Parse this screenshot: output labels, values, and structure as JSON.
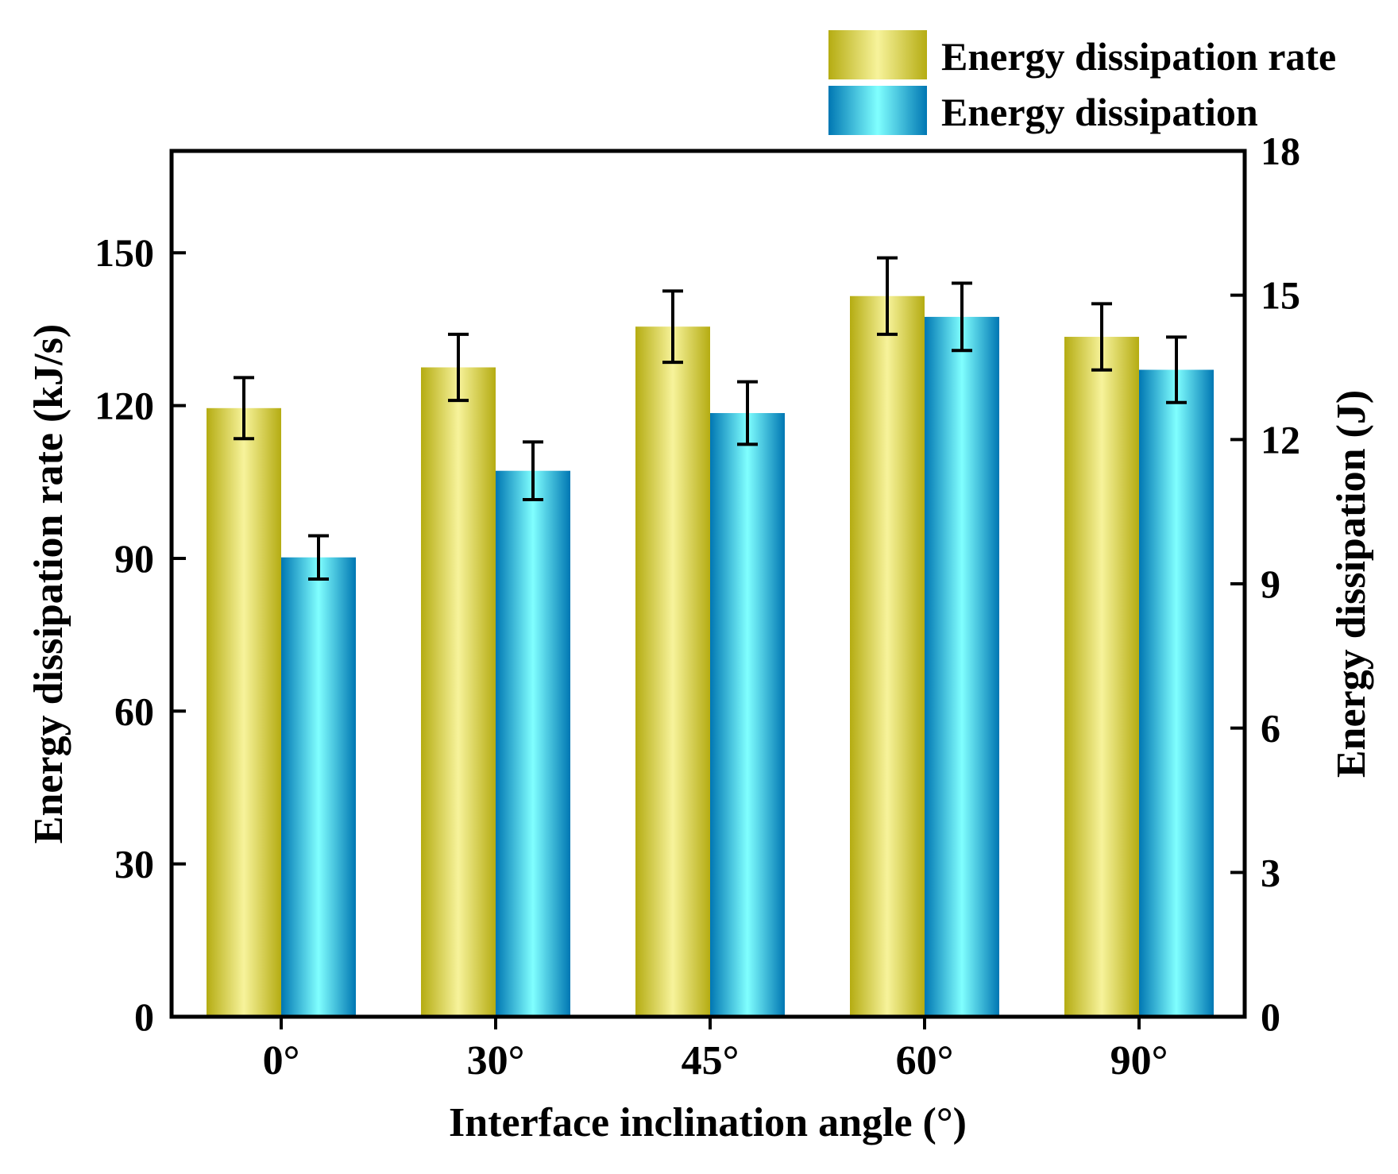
{
  "chart_data": {
    "type": "bar",
    "xlabel": "Interface inclination angle (°)",
    "categories": [
      "0°",
      "30°",
      "45°",
      "60°",
      "90°"
    ],
    "y_left": {
      "label": "Energy dissipation rate (kJ/s)",
      "ylim": [
        0,
        170
      ],
      "ticks": [
        0,
        30,
        60,
        90,
        120,
        150
      ]
    },
    "y_right": {
      "label": "Energy dissipation (J)",
      "ylim": [
        0,
        18
      ],
      "ticks": [
        0,
        3,
        6,
        9,
        12,
        15,
        18
      ]
    },
    "series": [
      {
        "name": "Energy dissipation rate",
        "axis": "left",
        "values": [
          119.5,
          127.5,
          135.5,
          141.5,
          133.5
        ],
        "errors": [
          6.0,
          6.5,
          7.0,
          7.5,
          6.5
        ],
        "colors": {
          "edge": "#b5ac12",
          "center": "#f7f39b"
        }
      },
      {
        "name": "Energy dissipation",
        "axis": "right",
        "values": [
          9.55,
          11.35,
          12.55,
          14.55,
          13.45
        ],
        "errors": [
          0.45,
          0.6,
          0.65,
          0.7,
          0.68
        ],
        "colors": {
          "edge": "#0077b3",
          "center": "#80ffff"
        }
      }
    ],
    "legend_position": "top-right",
    "grid": false
  }
}
